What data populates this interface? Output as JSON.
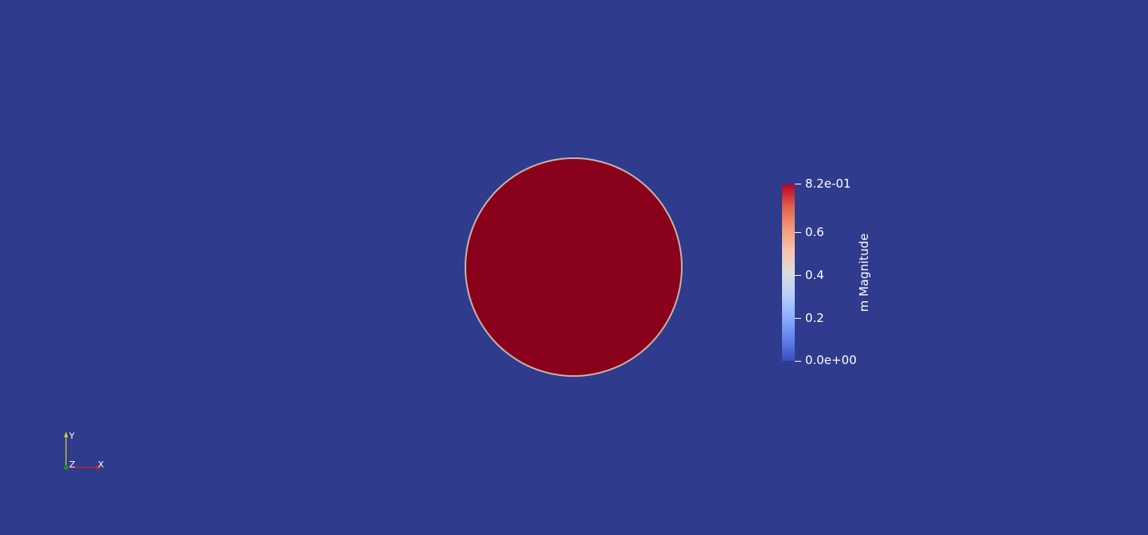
{
  "scene": {
    "background_color": "#2f3b8d",
    "object_fill_color": "#8a011c",
    "object_edge_color": "#c9b4a8"
  },
  "colorbar": {
    "title": "m Magnitude",
    "min_label": "0.0e+00",
    "max_label": "8.2e-01",
    "range": [
      0.0,
      0.82
    ],
    "ticks": [
      {
        "value": 0.82,
        "label": "8.2e-01"
      },
      {
        "value": 0.6,
        "label": "0.6"
      },
      {
        "value": 0.4,
        "label": "0.4"
      },
      {
        "value": 0.2,
        "label": "0.2"
      },
      {
        "value": 0.0,
        "label": "0.0e+00"
      }
    ],
    "colormap": "Cool to Warm"
  },
  "axes_triad": {
    "x_label": "X",
    "y_label": "Y",
    "z_label": "Z",
    "x_color": "#d42020",
    "y_color": "#e0d020",
    "z_color": "#1a8a2a"
  }
}
